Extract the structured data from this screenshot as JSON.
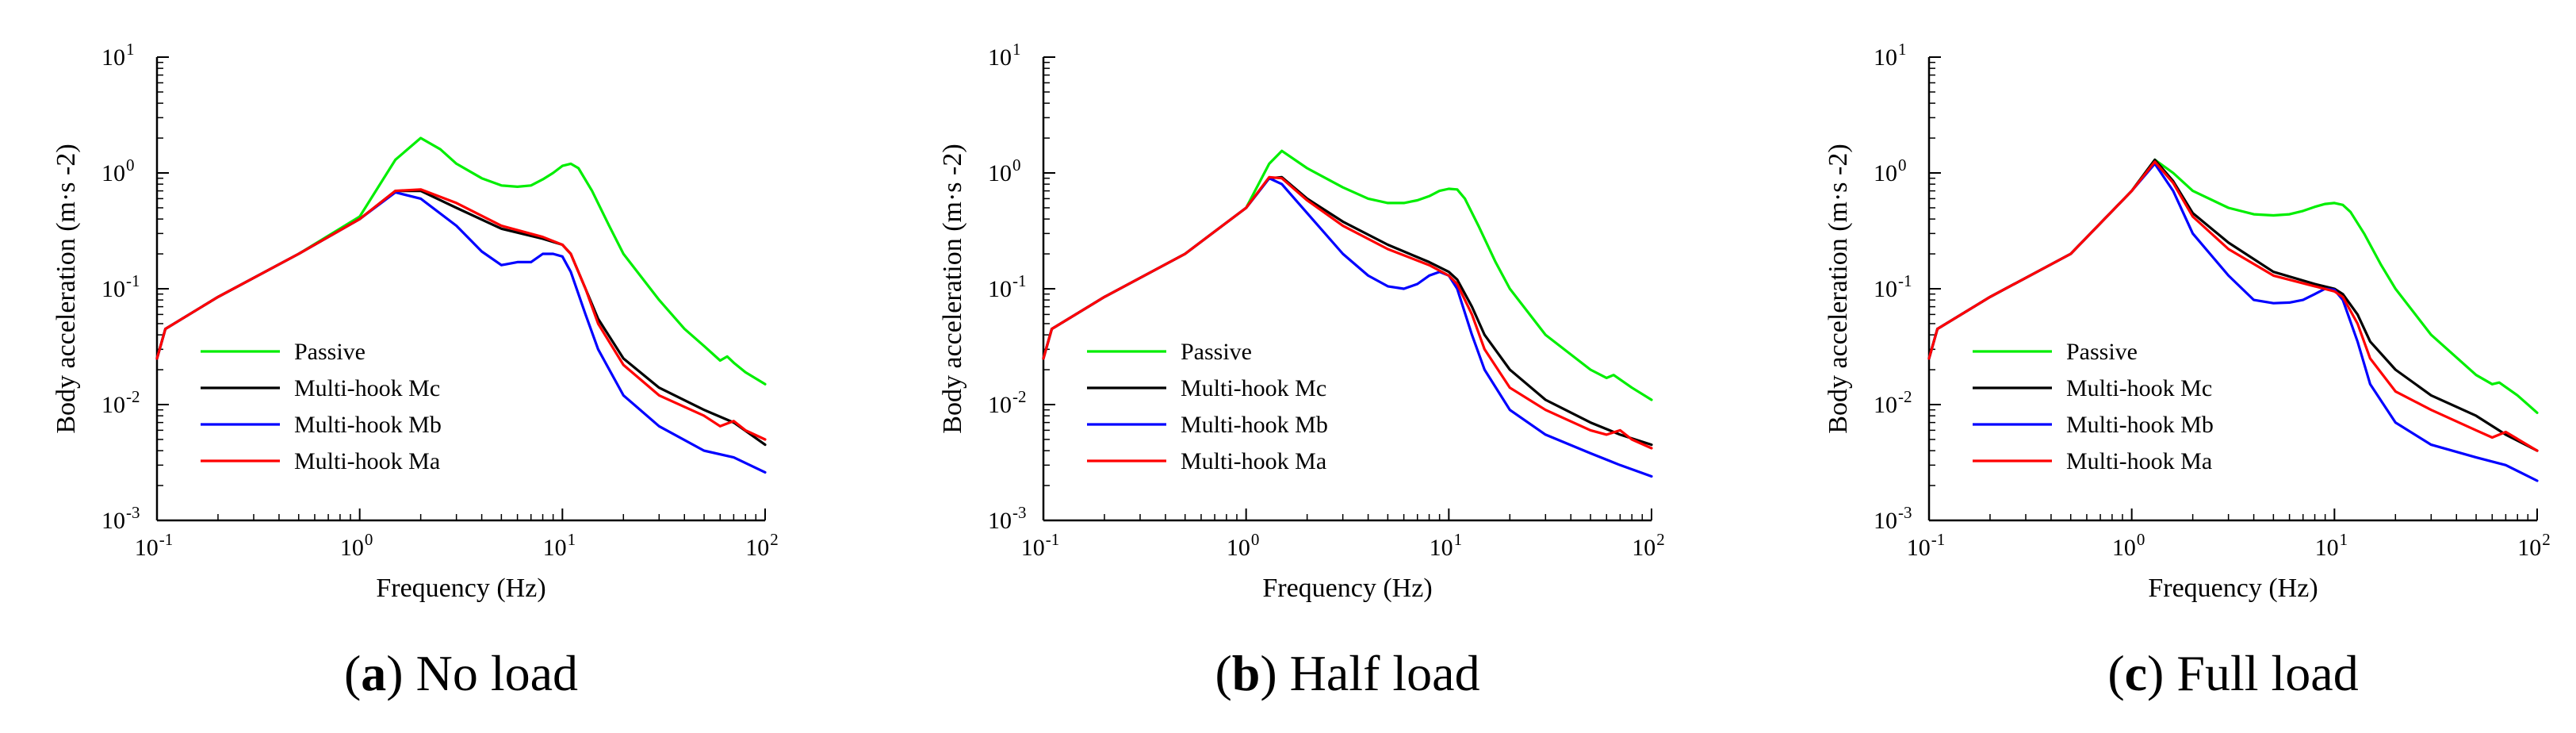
{
  "figure": {
    "captions": [
      {
        "letter": "a",
        "text": " No load"
      },
      {
        "letter": "b",
        "text": " Half load"
      },
      {
        "letter": "c",
        "text": " Full load"
      }
    ]
  },
  "series_colors": {
    "Passive": "#00ee00",
    "Multi-hook Mc": "#000000",
    "Multi-hook Mb": "#0000ff",
    "Multi-hook Ma": "#ff0000"
  },
  "chart_data": [
    {
      "type": "line",
      "title": "(a) No load",
      "xlabel": "Frequency (Hz)",
      "ylabel": "Body acceleration (m·s  -2)",
      "xscale": "log",
      "yscale": "log",
      "xlim": [
        0.1,
        100
      ],
      "ylim": [
        0.001,
        10
      ],
      "x_ticks": [
        {
          "base": "10",
          "exp": "-1"
        },
        {
          "base": "10",
          "exp": "0"
        },
        {
          "base": "10",
          "exp": "1"
        },
        {
          "base": "10",
          "exp": "2"
        }
      ],
      "y_ticks": [
        {
          "base": "10",
          "exp": "-3"
        },
        {
          "base": "10",
          "exp": "-2"
        },
        {
          "base": "10",
          "exp": "-1"
        },
        {
          "base": "10",
          "exp": "0"
        },
        {
          "base": "10",
          "exp": "1"
        }
      ],
      "legend": {
        "position": "lower-left",
        "entries": [
          "Passive",
          "Multi-hook Mc",
          "Multi-hook Mb",
          "Multi-hook Ma"
        ]
      },
      "series": [
        {
          "name": "Passive",
          "x": [
            0.1,
            0.11,
            0.2,
            0.5,
            1.0,
            1.5,
            2.0,
            2.5,
            3.0,
            4.0,
            5.0,
            6.0,
            7.0,
            8.0,
            9.0,
            10.0,
            11.0,
            12.0,
            14.0,
            17.0,
            20.0,
            30.0,
            40.0,
            50.0,
            60.0,
            65.0,
            70.0,
            80.0,
            100.0
          ],
          "y": [
            0.025,
            0.045,
            0.085,
            0.2,
            0.42,
            1.3,
            2.0,
            1.6,
            1.2,
            0.9,
            0.78,
            0.76,
            0.78,
            0.88,
            1.0,
            1.15,
            1.2,
            1.1,
            0.7,
            0.35,
            0.2,
            0.08,
            0.045,
            0.032,
            0.024,
            0.026,
            0.023,
            0.019,
            0.015
          ]
        },
        {
          "name": "Multi-hook Mc",
          "x": [
            0.1,
            0.11,
            0.2,
            0.5,
            1.0,
            1.5,
            2.0,
            3.0,
            5.0,
            8.0,
            10.0,
            11.0,
            13.0,
            15.0,
            20.0,
            30.0,
            50.0,
            70.0,
            100.0
          ],
          "y": [
            0.025,
            0.045,
            0.085,
            0.2,
            0.4,
            0.7,
            0.7,
            0.5,
            0.33,
            0.27,
            0.24,
            0.2,
            0.1,
            0.055,
            0.025,
            0.014,
            0.009,
            0.007,
            0.0045
          ]
        },
        {
          "name": "Multi-hook Mb",
          "x": [
            0.1,
            0.11,
            0.2,
            0.5,
            1.0,
            1.5,
            2.0,
            3.0,
            4.0,
            5.0,
            6.0,
            7.0,
            8.0,
            9.0,
            10.0,
            11.0,
            13.0,
            15.0,
            20.0,
            30.0,
            50.0,
            70.0,
            100.0
          ],
          "y": [
            0.025,
            0.045,
            0.085,
            0.2,
            0.4,
            0.68,
            0.6,
            0.35,
            0.21,
            0.16,
            0.17,
            0.17,
            0.2,
            0.2,
            0.19,
            0.14,
            0.06,
            0.03,
            0.012,
            0.0065,
            0.004,
            0.0035,
            0.0026
          ]
        },
        {
          "name": "Multi-hook Ma",
          "x": [
            0.1,
            0.11,
            0.2,
            0.5,
            1.0,
            1.5,
            2.0,
            3.0,
            5.0,
            8.0,
            10.0,
            11.0,
            13.0,
            15.0,
            20.0,
            30.0,
            50.0,
            60.0,
            70.0,
            80.0,
            100.0
          ],
          "y": [
            0.025,
            0.045,
            0.085,
            0.2,
            0.4,
            0.7,
            0.72,
            0.55,
            0.35,
            0.28,
            0.24,
            0.2,
            0.1,
            0.05,
            0.022,
            0.012,
            0.008,
            0.0065,
            0.0072,
            0.006,
            0.005
          ]
        }
      ]
    },
    {
      "type": "line",
      "title": "(b) Half load",
      "xlabel": "Frequency (Hz)",
      "ylabel": "Body acceleration (m·s  -2)",
      "xscale": "log",
      "yscale": "log",
      "xlim": [
        0.1,
        100
      ],
      "ylim": [
        0.001,
        10
      ],
      "x_ticks": [
        {
          "base": "10",
          "exp": "-1"
        },
        {
          "base": "10",
          "exp": "0"
        },
        {
          "base": "10",
          "exp": "1"
        },
        {
          "base": "10",
          "exp": "2"
        }
      ],
      "y_ticks": [
        {
          "base": "10",
          "exp": "-3"
        },
        {
          "base": "10",
          "exp": "-2"
        },
        {
          "base": "10",
          "exp": "-1"
        },
        {
          "base": "10",
          "exp": "0"
        },
        {
          "base": "10",
          "exp": "1"
        }
      ],
      "legend": {
        "position": "lower-left",
        "entries": [
          "Passive",
          "Multi-hook Mc",
          "Multi-hook Mb",
          "Multi-hook Ma"
        ]
      },
      "series": [
        {
          "name": "Passive",
          "x": [
            0.1,
            0.11,
            0.2,
            0.5,
            1.0,
            1.3,
            1.5,
            2.0,
            3.0,
            4.0,
            5.0,
            6.0,
            7.0,
            8.0,
            9.0,
            10.0,
            11.0,
            12.0,
            14.0,
            17.0,
            20.0,
            30.0,
            50.0,
            60.0,
            65.0,
            80.0,
            100.0
          ],
          "y": [
            0.025,
            0.045,
            0.085,
            0.2,
            0.5,
            1.2,
            1.55,
            1.1,
            0.75,
            0.6,
            0.55,
            0.55,
            0.58,
            0.63,
            0.7,
            0.73,
            0.72,
            0.6,
            0.35,
            0.17,
            0.1,
            0.04,
            0.02,
            0.017,
            0.018,
            0.014,
            0.011
          ]
        },
        {
          "name": "Multi-hook Mc",
          "x": [
            0.1,
            0.11,
            0.2,
            0.5,
            1.0,
            1.3,
            1.5,
            2.0,
            3.0,
            5.0,
            8.0,
            10.0,
            11.0,
            13.0,
            15.0,
            20.0,
            30.0,
            50.0,
            70.0,
            100.0
          ],
          "y": [
            0.025,
            0.045,
            0.085,
            0.2,
            0.5,
            0.9,
            0.92,
            0.6,
            0.38,
            0.24,
            0.17,
            0.14,
            0.12,
            0.07,
            0.04,
            0.02,
            0.011,
            0.007,
            0.0055,
            0.0045
          ]
        },
        {
          "name": "Multi-hook Mb",
          "x": [
            0.1,
            0.11,
            0.2,
            0.5,
            1.0,
            1.3,
            1.5,
            2.0,
            3.0,
            4.0,
            5.0,
            6.0,
            7.0,
            8.0,
            9.0,
            10.0,
            11.0,
            13.0,
            15.0,
            20.0,
            30.0,
            50.0,
            70.0,
            100.0
          ],
          "y": [
            0.025,
            0.045,
            0.085,
            0.2,
            0.5,
            0.9,
            0.8,
            0.45,
            0.2,
            0.13,
            0.105,
            0.1,
            0.11,
            0.13,
            0.14,
            0.13,
            0.1,
            0.04,
            0.02,
            0.009,
            0.0055,
            0.0038,
            0.003,
            0.0024
          ]
        },
        {
          "name": "Multi-hook Ma",
          "x": [
            0.1,
            0.11,
            0.2,
            0.5,
            1.0,
            1.3,
            1.5,
            2.0,
            3.0,
            5.0,
            8.0,
            10.0,
            11.0,
            13.0,
            15.0,
            20.0,
            30.0,
            50.0,
            60.0,
            70.0,
            80.0,
            100.0
          ],
          "y": [
            0.025,
            0.045,
            0.085,
            0.2,
            0.5,
            0.92,
            0.9,
            0.58,
            0.35,
            0.22,
            0.16,
            0.13,
            0.11,
            0.06,
            0.03,
            0.014,
            0.009,
            0.006,
            0.0055,
            0.006,
            0.005,
            0.0042
          ]
        }
      ]
    },
    {
      "type": "line",
      "title": "(c) Full load",
      "xlabel": "Frequency (Hz)",
      "ylabel": "Body acceleration (m·s  -2)",
      "xscale": "log",
      "yscale": "log",
      "xlim": [
        0.1,
        100
      ],
      "ylim": [
        0.001,
        10
      ],
      "x_ticks": [
        {
          "base": "10",
          "exp": "-1"
        },
        {
          "base": "10",
          "exp": "0"
        },
        {
          "base": "10",
          "exp": "1"
        },
        {
          "base": "10",
          "exp": "2"
        }
      ],
      "y_ticks": [
        {
          "base": "10",
          "exp": "-3"
        },
        {
          "base": "10",
          "exp": "-2"
        },
        {
          "base": "10",
          "exp": "-1"
        },
        {
          "base": "10",
          "exp": "0"
        },
        {
          "base": "10",
          "exp": "1"
        }
      ],
      "legend": {
        "position": "lower-left",
        "entries": [
          "Passive",
          "Multi-hook Mc",
          "Multi-hook Mb",
          "Multi-hook Ma"
        ]
      },
      "series": [
        {
          "name": "Passive",
          "x": [
            0.1,
            0.11,
            0.2,
            0.5,
            1.0,
            1.3,
            1.6,
            2.0,
            3.0,
            4.0,
            5.0,
            6.0,
            7.0,
            8.0,
            9.0,
            10.0,
            11.0,
            12.0,
            14.0,
            17.0,
            20.0,
            30.0,
            50.0,
            60.0,
            65.0,
            80.0,
            100.0
          ],
          "y": [
            0.025,
            0.045,
            0.085,
            0.2,
            0.7,
            1.3,
            1.0,
            0.7,
            0.5,
            0.44,
            0.43,
            0.44,
            0.47,
            0.51,
            0.54,
            0.55,
            0.53,
            0.46,
            0.3,
            0.16,
            0.1,
            0.04,
            0.018,
            0.015,
            0.0155,
            0.012,
            0.0085
          ]
        },
        {
          "name": "Multi-hook Mc",
          "x": [
            0.1,
            0.11,
            0.2,
            0.5,
            1.0,
            1.3,
            1.6,
            2.0,
            3.0,
            5.0,
            8.0,
            10.0,
            11.0,
            13.0,
            15.0,
            20.0,
            30.0,
            50.0,
            70.0,
            100.0
          ],
          "y": [
            0.025,
            0.045,
            0.085,
            0.2,
            0.7,
            1.3,
            0.85,
            0.45,
            0.25,
            0.14,
            0.11,
            0.1,
            0.09,
            0.06,
            0.035,
            0.02,
            0.012,
            0.008,
            0.0055,
            0.004
          ]
        },
        {
          "name": "Multi-hook Mb",
          "x": [
            0.1,
            0.11,
            0.2,
            0.5,
            1.0,
            1.3,
            1.6,
            2.0,
            3.0,
            4.0,
            5.0,
            6.0,
            7.0,
            8.0,
            9.0,
            10.0,
            11.0,
            13.0,
            15.0,
            20.0,
            30.0,
            50.0,
            70.0,
            100.0
          ],
          "y": [
            0.025,
            0.045,
            0.085,
            0.2,
            0.7,
            1.2,
            0.7,
            0.3,
            0.13,
            0.08,
            0.075,
            0.076,
            0.08,
            0.09,
            0.1,
            0.098,
            0.08,
            0.035,
            0.015,
            0.007,
            0.0045,
            0.0035,
            0.003,
            0.0022
          ]
        },
        {
          "name": "Multi-hook Ma",
          "x": [
            0.1,
            0.11,
            0.2,
            0.5,
            1.0,
            1.3,
            1.6,
            2.0,
            3.0,
            5.0,
            8.0,
            10.0,
            11.0,
            13.0,
            15.0,
            20.0,
            30.0,
            50.0,
            60.0,
            70.0,
            100.0
          ],
          "y": [
            0.025,
            0.045,
            0.085,
            0.2,
            0.7,
            1.25,
            0.82,
            0.42,
            0.22,
            0.13,
            0.105,
            0.095,
            0.085,
            0.05,
            0.025,
            0.013,
            0.009,
            0.006,
            0.0052,
            0.0058,
            0.004
          ]
        }
      ]
    }
  ]
}
